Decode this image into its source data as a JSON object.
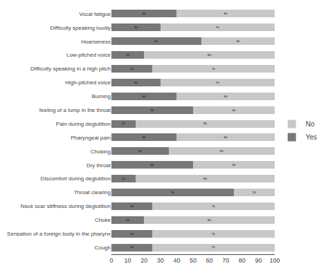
{
  "chart_data": {
    "type": "bar",
    "orientation": "horizontal",
    "stacked": true,
    "data_labels": true,
    "grid": false,
    "legend": "right",
    "categories": [
      "Vocal fatigue",
      "Difficulty speaking loudly",
      "Hoarseness",
      "Low-pitched voice",
      "Difficulty speaking in a high pitch",
      "High-pitched voice",
      "Burning",
      "feeling of a lump in the throat",
      "Pain during deglutition",
      "Pharyngeal pain",
      "Choking",
      "Dry throat",
      "Discomfort during deglutition",
      "Throat clearing",
      "Neck scar stiffness during deglutition",
      "Choke",
      "Sensation of a foreign body in the pharynx",
      "Cough"
    ],
    "series": [
      {
        "name": "Yes",
        "color": "#787878",
        "values": [
          40,
          30,
          55,
          20,
          25,
          30,
          40,
          50,
          15,
          40,
          35,
          50,
          15,
          75,
          25,
          20,
          25,
          25
        ]
      },
      {
        "name": "No",
        "color": "#c8c8c8",
        "values": [
          60,
          70,
          45,
          80,
          75,
          70,
          60,
          50,
          85,
          60,
          65,
          50,
          85,
          25,
          75,
          80,
          75,
          75
        ]
      }
    ],
    "xlim": [
      0,
      100
    ],
    "xticks": [
      0,
      10,
      20,
      30,
      40,
      50,
      60,
      70,
      80,
      90,
      100
    ]
  }
}
